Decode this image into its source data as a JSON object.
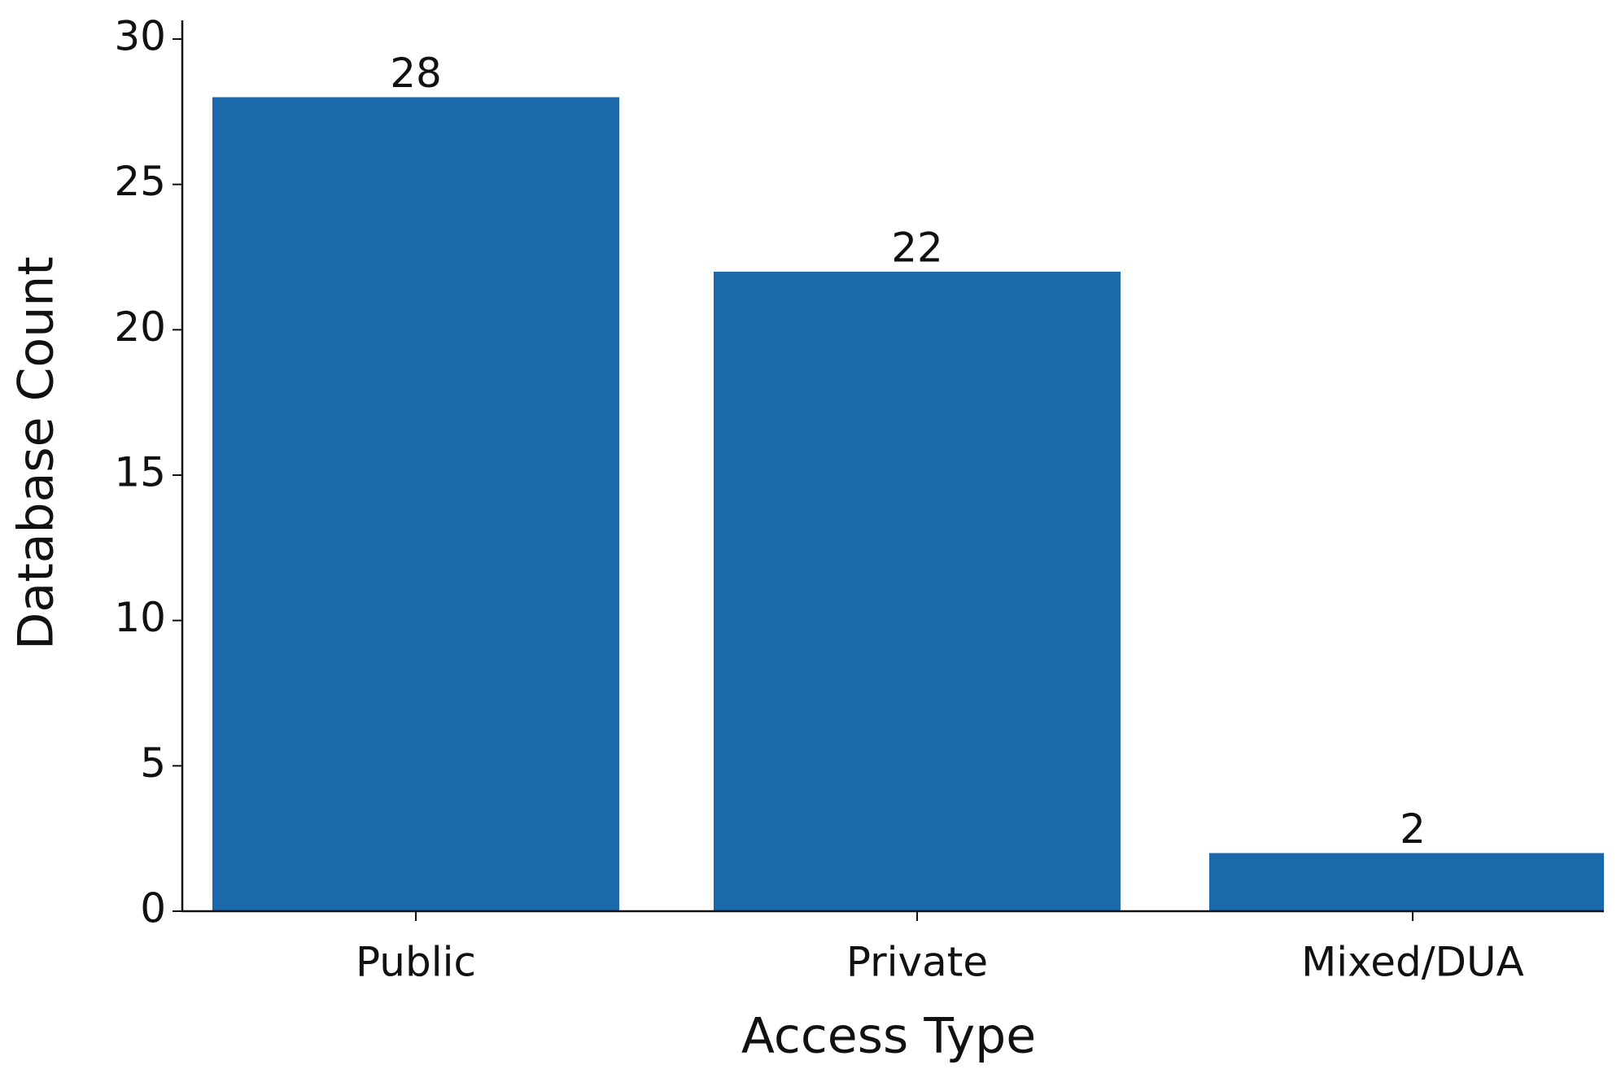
{
  "chart_data": {
    "type": "bar",
    "x_label": "Access Type",
    "y_label": "Database Count",
    "categories": [
      "Public",
      "Private",
      "Mixed/DUA"
    ],
    "values": [
      28,
      22,
      2
    ],
    "color": "#1b69ab",
    "ylim": [
      0,
      30
    ],
    "yticks": [
      0,
      5,
      10,
      15,
      20,
      25,
      30
    ],
    "grid": false
  }
}
